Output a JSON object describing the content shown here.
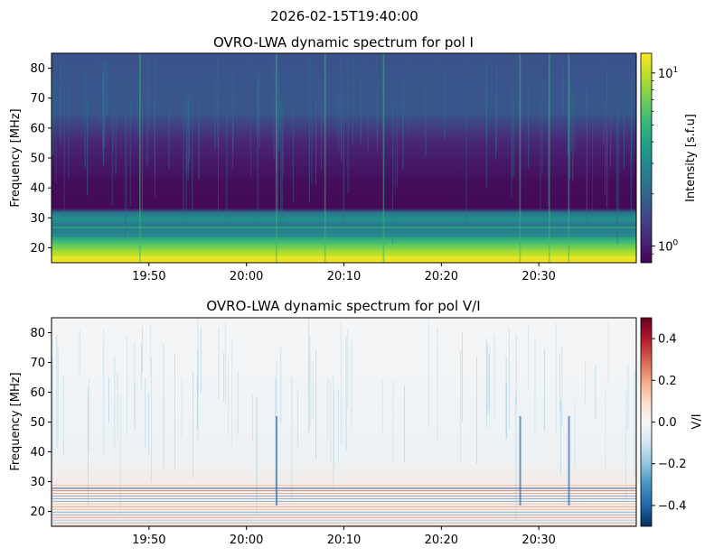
{
  "figure": {
    "suptitle": "2026-02-15T19:40:00"
  },
  "chart_data": [
    {
      "type": "heatmap",
      "title": "OVRO-LWA dynamic spectrum for pol I",
      "xlabel": "",
      "ylabel": "Frequency [MHz]",
      "x_ticks": [
        "19:50",
        "20:00",
        "20:10",
        "20:20",
        "20:30"
      ],
      "x_range": [
        "19:40",
        "20:40"
      ],
      "y_ticks": [
        20,
        30,
        40,
        50,
        60,
        70,
        80
      ],
      "ylim": [
        15,
        85
      ],
      "colormap": "viridis",
      "color_scale": "log",
      "colorbar": {
        "label": "Intensity [s.f.u]",
        "range": [
          0.8,
          13
        ],
        "major_ticks": [
          {
            "value": 1,
            "base": "10",
            "exp": "0"
          },
          {
            "value": 10,
            "base": "10",
            "exp": "1"
          }
        ],
        "minor_ticks": [
          0.9,
          2,
          3,
          4,
          5,
          6,
          7,
          8,
          9
        ]
      },
      "features": {
        "low_freq_band_bright_below_mhz": 28,
        "quiet_region_mhz": [
          30,
          50
        ],
        "upper_band_moderate_above_mhz": 50,
        "vertical_bursts_at": [
          "19:49",
          "20:03",
          "20:08",
          "20:14",
          "20:28",
          "20:31",
          "20:33"
        ]
      }
    },
    {
      "type": "heatmap",
      "title": "OVRO-LWA dynamic spectrum for pol V/I",
      "xlabel": "",
      "ylabel": "Frequency [MHz]",
      "x_ticks": [
        "19:50",
        "20:00",
        "20:10",
        "20:20",
        "20:30"
      ],
      "x_range": [
        "19:40",
        "20:40"
      ],
      "y_ticks": [
        20,
        30,
        40,
        50,
        60,
        70,
        80
      ],
      "ylim": [
        15,
        85
      ],
      "colormap": "RdBu_r",
      "color_scale": "linear",
      "colorbar": {
        "label": "V/I",
        "range": [
          -0.5,
          0.5
        ],
        "ticks": [
          "−0.4",
          "−0.2",
          "0.0",
          "0.2",
          "0.4"
        ],
        "tick_values": [
          -0.4,
          -0.2,
          0.0,
          0.2,
          0.4
        ]
      },
      "features": {
        "negative_bursts_at": [
          "20:03",
          "20:28",
          "20:33"
        ],
        "striped_band_mhz": [
          15,
          29
        ]
      }
    }
  ],
  "colors": {
    "viridis": [
      "#440154",
      "#482878",
      "#3e4989",
      "#31688e",
      "#26828e",
      "#1f9e89",
      "#35b779",
      "#6ece58",
      "#b5de2b",
      "#fde725"
    ],
    "rdbu_r": [
      "#053061",
      "#2166ac",
      "#4393c3",
      "#92c5de",
      "#d1e5f0",
      "#f7f7f7",
      "#fddbc7",
      "#f4a582",
      "#d6604d",
      "#b2182b",
      "#67001f"
    ]
  }
}
